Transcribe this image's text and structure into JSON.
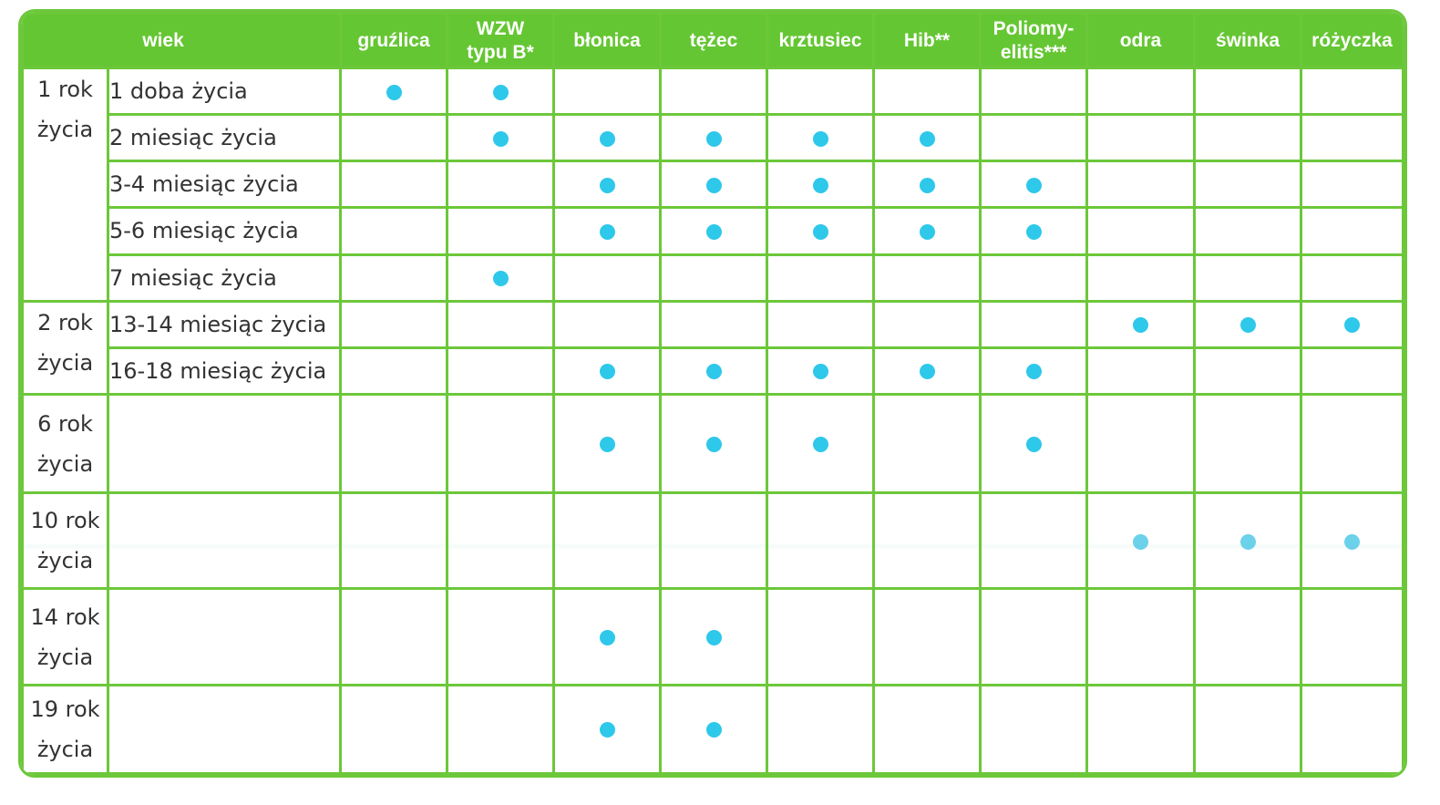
{
  "table": {
    "headers": [
      "wiek",
      "gruźlica",
      "WZW typu B*",
      "błonica",
      "tężec",
      "krztusiec",
      "Hib**",
      "Poliomy-elitis***",
      "odra",
      "świnka",
      "różyczka"
    ],
    "header_lines": [
      [
        "wiek"
      ],
      [
        "gruźlica"
      ],
      [
        "WZW",
        "typu B*"
      ],
      [
        "błonica"
      ],
      [
        "tężec"
      ],
      [
        "krztusiec"
      ],
      [
        "Hib**"
      ],
      [
        "Poliomy-",
        "elitis***"
      ],
      [
        "odra"
      ],
      [
        "świnka"
      ],
      [
        "różyczka"
      ]
    ],
    "groups": [
      {
        "age": "1 rok życia",
        "age_lines": [
          "1 rok",
          "życia"
        ],
        "rows": [
          {
            "label": "1 doba życia",
            "marks": [
              1,
              1,
              0,
              0,
              0,
              0,
              0,
              0,
              0,
              0
            ]
          },
          {
            "label": "2 miesiąc życia",
            "marks": [
              0,
              1,
              1,
              1,
              1,
              1,
              0,
              0,
              0,
              0
            ]
          },
          {
            "label": "3-4 miesiąc życia",
            "marks": [
              0,
              0,
              1,
              1,
              1,
              1,
              1,
              0,
              0,
              0
            ]
          },
          {
            "label": "5-6 miesiąc życia",
            "marks": [
              0,
              0,
              1,
              1,
              1,
              1,
              1,
              0,
              0,
              0
            ]
          },
          {
            "label": "7 miesiąc życia",
            "marks": [
              0,
              1,
              0,
              0,
              0,
              0,
              0,
              0,
              0,
              0
            ]
          }
        ]
      },
      {
        "age": "2 rok życia",
        "age_lines": [
          "2 rok",
          "życia"
        ],
        "rows": [
          {
            "label": "13-14 miesiąc życia",
            "marks": [
              0,
              0,
              0,
              0,
              0,
              0,
              0,
              1,
              1,
              1
            ]
          },
          {
            "label": "16-18 miesiąc życia",
            "marks": [
              0,
              0,
              1,
              1,
              1,
              1,
              1,
              0,
              0,
              0
            ]
          }
        ]
      },
      {
        "age": "6 rok życia",
        "age_lines": [
          "6 rok",
          "życia"
        ],
        "rows": [
          {
            "label": "",
            "marks": [
              0,
              0,
              1,
              1,
              1,
              0,
              1,
              0,
              0,
              0
            ]
          }
        ]
      },
      {
        "age": "10 rok życia",
        "age_lines": [
          "10 rok",
          "życia"
        ],
        "pale": true,
        "rows": [
          {
            "label": "",
            "marks": [
              0,
              0,
              0,
              0,
              0,
              0,
              0,
              1,
              1,
              1
            ]
          }
        ]
      },
      {
        "age": "14 rok życia",
        "age_lines": [
          "14 rok",
          "życia"
        ],
        "rows": [
          {
            "label": "",
            "marks": [
              0,
              0,
              1,
              1,
              0,
              0,
              0,
              0,
              0,
              0
            ]
          }
        ]
      },
      {
        "age": "19 rok życia",
        "age_lines": [
          "19 rok",
          "życia"
        ],
        "rows": [
          {
            "label": "",
            "marks": [
              0,
              0,
              1,
              1,
              0,
              0,
              0,
              0,
              0,
              0
            ]
          }
        ]
      }
    ],
    "colors": {
      "header_bg": "#65c633",
      "grid": "#6cc83a",
      "dot": "#2ec8ea",
      "text": "#333333"
    }
  }
}
